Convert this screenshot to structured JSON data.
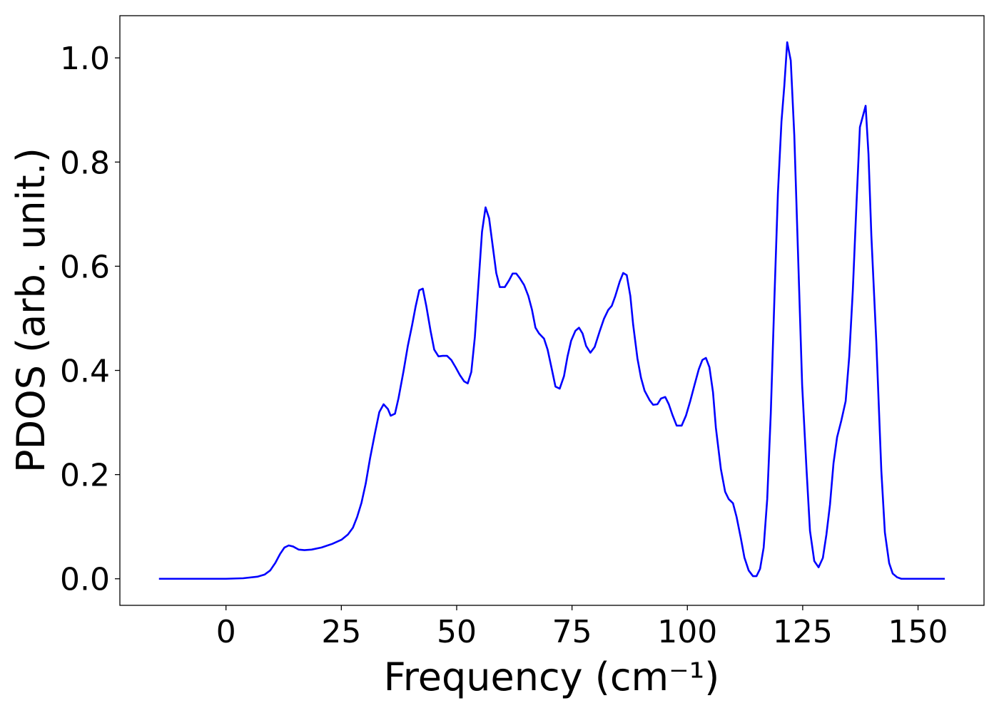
{
  "chart_data": {
    "type": "line",
    "xlabel": "Frequency (cm⁻¹)",
    "ylabel": "PDOS (arb. unit.)",
    "xlim": [
      -23.0,
      164.3
    ],
    "ylim": [
      -0.051,
      1.081
    ],
    "xticks": [
      0,
      25,
      50,
      75,
      100,
      125,
      150
    ],
    "yticks": [
      {
        "value": 0,
        "label": "0.0"
      },
      0.2,
      0.4,
      0.6,
      0.8,
      {
        "value": 1,
        "label": "1.0"
      }
    ],
    "grid": false,
    "series": [
      {
        "color": "#0000ff",
        "x": [
          -14.53,
          0,
          3.71,
          6.8,
          8.35,
          9.58,
          10.66,
          11.75,
          12.67,
          13.6,
          14.53,
          15.77,
          17,
          18.55,
          20.71,
          23.03,
          25.04,
          26.43,
          27.51,
          28.44,
          29.37,
          30.29,
          31.22,
          32.3,
          33.23,
          34.16,
          35.09,
          35.7,
          36.63,
          37.4,
          38.49,
          39.41,
          40.34,
          41.11,
          41.89,
          42.66,
          43.43,
          44.36,
          45.13,
          46.06,
          46.99,
          47.91,
          48.84,
          49.77,
          50.7,
          51.62,
          52.4,
          53.17,
          53.94,
          54.71,
          55.49,
          56.26,
          57.03,
          57.81,
          58.58,
          59.35,
          60.43,
          61.36,
          62.13,
          62.91,
          63.68,
          64.61,
          65.53,
          66.31,
          67.08,
          67.85,
          68.93,
          69.71,
          70.63,
          71.41,
          72.33,
          73.26,
          74.03,
          74.81,
          75.73,
          76.51,
          77.28,
          78.05,
          78.98,
          79.91,
          80.99,
          81.92,
          82.84,
          83.62,
          84.39,
          85.32,
          86.09,
          86.86,
          87.64,
          88.25,
          89.18,
          89.95,
          90.73,
          91.81,
          92.58,
          93.51,
          94.28,
          95.21,
          95.98,
          96.75,
          97.68,
          98.76,
          99.69,
          100.62,
          101.55,
          102.47,
          103.25,
          104.02,
          104.79,
          105.56,
          106.18,
          107.26,
          108.19,
          108.96,
          109.89,
          110.66,
          111.59,
          112.36,
          113.29,
          114.22,
          114.99,
          115.76,
          116.54,
          117.31,
          118.08,
          118.86,
          119.63,
          120.4,
          121.02,
          121.64,
          122.41,
          123.18,
          123.96,
          124.88,
          125.81,
          126.58,
          127.51,
          128.44,
          129.37,
          130.14,
          130.91,
          131.68,
          132.46,
          133.38,
          134.31,
          135.09,
          135.86,
          136.63,
          137.4,
          138.64,
          139.26,
          139.88,
          140.96,
          142.04,
          142.81,
          143.74,
          144.51,
          145.44,
          146.37,
          155.8
        ],
        "values": [
          0,
          0,
          0.001,
          0.004,
          0.008,
          0.016,
          0.03,
          0.048,
          0.06,
          0.064,
          0.062,
          0.056,
          0.055,
          0.056,
          0.06,
          0.067,
          0.075,
          0.085,
          0.098,
          0.119,
          0.146,
          0.183,
          0.231,
          0.28,
          0.32,
          0.335,
          0.326,
          0.313,
          0.317,
          0.347,
          0.399,
          0.447,
          0.487,
          0.523,
          0.554,
          0.557,
          0.523,
          0.475,
          0.44,
          0.427,
          0.428,
          0.428,
          0.42,
          0.406,
          0.391,
          0.379,
          0.375,
          0.397,
          0.464,
          0.564,
          0.666,
          0.713,
          0.692,
          0.639,
          0.587,
          0.56,
          0.56,
          0.573,
          0.586,
          0.586,
          0.577,
          0.564,
          0.543,
          0.517,
          0.482,
          0.471,
          0.461,
          0.44,
          0.402,
          0.369,
          0.365,
          0.389,
          0.427,
          0.457,
          0.476,
          0.482,
          0.471,
          0.447,
          0.434,
          0.445,
          0.475,
          0.499,
          0.516,
          0.524,
          0.543,
          0.57,
          0.587,
          0.583,
          0.543,
          0.488,
          0.423,
          0.386,
          0.361,
          0.343,
          0.334,
          0.335,
          0.346,
          0.349,
          0.335,
          0.315,
          0.294,
          0.294,
          0.313,
          0.341,
          0.372,
          0.402,
          0.42,
          0.424,
          0.406,
          0.358,
          0.29,
          0.211,
          0.167,
          0.153,
          0.145,
          0.119,
          0.078,
          0.041,
          0.016,
          0.005,
          0.005,
          0.019,
          0.06,
          0.153,
          0.317,
          0.536,
          0.741,
          0.878,
          0.947,
          1.03,
          0.995,
          0.851,
          0.632,
          0.372,
          0.213,
          0.092,
          0.034,
          0.022,
          0.04,
          0.085,
          0.142,
          0.222,
          0.272,
          0.304,
          0.341,
          0.427,
          0.553,
          0.714,
          0.867,
          0.908,
          0.815,
          0.659,
          0.454,
          0.208,
          0.089,
          0.03,
          0.01,
          0.003,
          0,
          0
        ]
      }
    ]
  }
}
